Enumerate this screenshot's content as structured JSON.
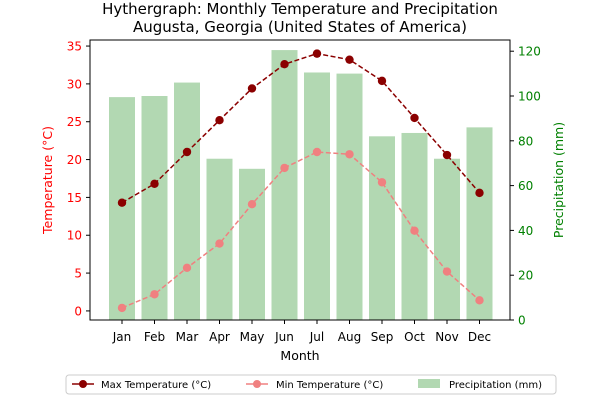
{
  "chart_data": {
    "type": "bar+line",
    "title": "Hythergraph: Monthly Temperature and Precipitation",
    "subtitle": "Augusta, Georgia (United States of America)",
    "xlabel": "Month",
    "ylabel_left": "Temperature (°C)",
    "ylabel_right": "Precipitation (mm)",
    "categories": [
      "Jan",
      "Feb",
      "Mar",
      "Apr",
      "May",
      "Jun",
      "Jul",
      "Aug",
      "Sep",
      "Oct",
      "Nov",
      "Dec"
    ],
    "ylim_left": [
      -1.2,
      35.8
    ],
    "ylim_right": [
      0,
      125
    ],
    "yticks_left": [
      0,
      5,
      10,
      15,
      20,
      25,
      30,
      35
    ],
    "yticks_right": [
      0,
      20,
      40,
      60,
      80,
      100,
      120
    ],
    "legend_position": "bottom",
    "series": [
      {
        "name": "Max Temperature (°C)",
        "axis": "left",
        "type": "line",
        "color": "#8b0000",
        "values": [
          14.3,
          16.8,
          21.0,
          25.2,
          29.4,
          32.6,
          34.0,
          33.2,
          30.4,
          25.5,
          20.6,
          15.6
        ]
      },
      {
        "name": "Min Temperature (°C)",
        "axis": "left",
        "type": "line",
        "color": "#f08080",
        "values": [
          0.4,
          2.2,
          5.7,
          8.9,
          14.1,
          18.9,
          21.0,
          20.7,
          17.0,
          10.6,
          5.2,
          1.4
        ]
      },
      {
        "name": "Precipitation (mm)",
        "axis": "right",
        "type": "bar",
        "color": "#b2d8b2",
        "values": [
          99.5,
          100.0,
          106.0,
          72.0,
          67.5,
          120.5,
          110.5,
          110.0,
          82.0,
          83.5,
          72.0,
          86.0
        ]
      }
    ]
  },
  "colors": {
    "left_axis": "#ff0000",
    "right_axis": "#008000",
    "axis": "#000000"
  }
}
